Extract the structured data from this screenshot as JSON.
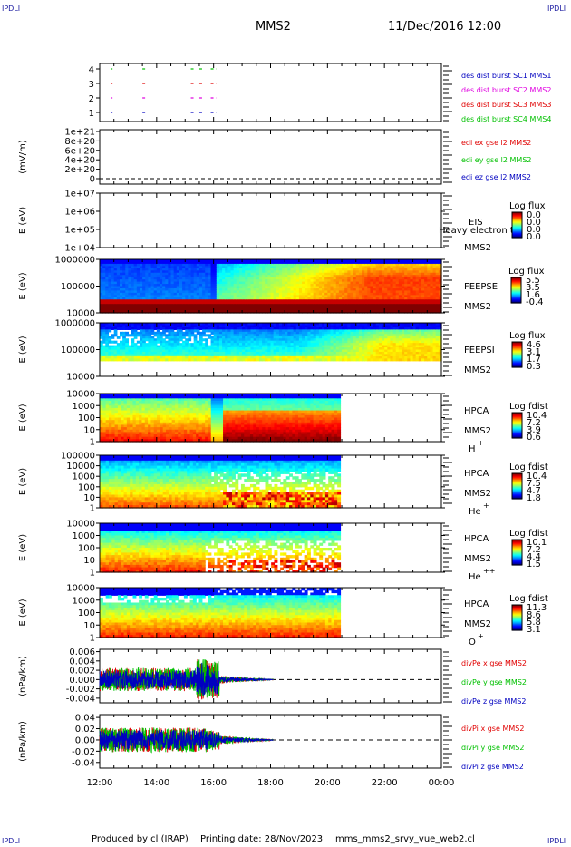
{
  "corner_logo": "IPDLI",
  "header": {
    "title": "MMS2",
    "datetime": "11/Dec/2016 12:00"
  },
  "footer": {
    "producer": "Produced by cl (IRAP)",
    "printing": "Printing date: 28/Nov/2023",
    "file": "mms_mms2_srvy_vue_web2.cl"
  },
  "time_axis": {
    "ticks": [
      "12:00",
      "14:00",
      "16:00",
      "18:00",
      "20:00",
      "22:00",
      "00:00"
    ],
    "start_hour": 12,
    "end_hour": 24
  },
  "colors": {
    "red": "#e00000",
    "green": "#00c000",
    "blue": "#0000c0",
    "magenta": "#e000e0"
  },
  "chart_data": [
    {
      "type": "line",
      "id": "burst",
      "ylabels": [
        "4",
        "3",
        "2",
        "1"
      ],
      "legend": [
        {
          "text": "des dist burst SC1 MMS1",
          "color": "#0000c0"
        },
        {
          "text": "des dist burst SC2 MMS2",
          "color": "#e000e0"
        },
        {
          "text": "des dist burst SC3 MMS3",
          "color": "#e00000"
        },
        {
          "text": "des dist burst SC4 MMS4",
          "color": "#00c000"
        }
      ],
      "intervals_hours": [
        [
          12.4,
          12.45
        ],
        [
          13.5,
          13.6
        ],
        [
          15.2,
          15.3
        ],
        [
          15.5,
          15.6
        ],
        [
          15.9,
          16.1
        ]
      ]
    },
    {
      "type": "line",
      "id": "edi",
      "ylabel": "(mV/m)",
      "ticks": [
        "1e+21",
        "8e+20",
        "6e+20",
        "4e+20",
        "2e+20",
        "0"
      ],
      "legend": [
        {
          "text": "edi ex gse l2 MMS2",
          "color": "#e00000"
        },
        {
          "text": "edi ey gse l2 MMS2",
          "color": "#00c000"
        },
        {
          "text": "edi ez gse l2 MMS2",
          "color": "#0000c0"
        }
      ]
    },
    {
      "type": "heatmap",
      "id": "eis",
      "ylabel": "E (eV)",
      "ticks": [
        "1e+07",
        "1e+06",
        "1e+05",
        "1e+04"
      ],
      "names": [
        "EIS",
        "MMS2"
      ],
      "overlay": "Heavy electron to",
      "cbar_title": "Log flux",
      "cbar_ticks": [
        "0.0",
        "0.0",
        "0.0",
        "0.0"
      ]
    },
    {
      "type": "heatmap",
      "id": "feepse",
      "ylabel": "E (eV)",
      "ticks": [
        "1000000",
        "100000",
        "10000"
      ],
      "names": [
        "FEEPSE",
        "MMS2"
      ],
      "cbar_title": "Log flux",
      "cbar_ticks": [
        "5.5",
        "3.5",
        "1.6",
        "-0.4"
      ]
    },
    {
      "type": "heatmap",
      "id": "feepsi",
      "ylabel": "E (eV)",
      "ticks": [
        "1000000",
        "100000",
        "10000"
      ],
      "names": [
        "FEEPSI",
        "MMS2"
      ],
      "cbar_title": "Log flux",
      "cbar_ticks": [
        "4.6",
        "3.1",
        "1.7",
        "0.3"
      ]
    },
    {
      "type": "heatmap",
      "id": "hpca-h",
      "ylabel": "E (eV)",
      "ticks": [
        "10000",
        "1000",
        "100",
        "10",
        "1"
      ],
      "names": [
        "HPCA",
        "MMS2"
      ],
      "species": "H",
      "charge": "+",
      "cbar_title": "Log fdist",
      "cbar_ticks": [
        "10.4",
        "7.2",
        "3.9",
        "0.6"
      ]
    },
    {
      "type": "heatmap",
      "id": "hpca-he",
      "ylabel": "E (eV)",
      "ticks": [
        "100000",
        "10000",
        "1000",
        "100",
        "10",
        "1"
      ],
      "names": [
        "HPCA",
        "MMS2"
      ],
      "species": "He",
      "charge": "+",
      "cbar_title": "Log fdist",
      "cbar_ticks": [
        "10.4",
        "7.5",
        "4.7",
        "1.8"
      ]
    },
    {
      "type": "heatmap",
      "id": "hpca-he2",
      "ylabel": "E (eV)",
      "ticks": [
        "10000",
        "1000",
        "100",
        "10",
        "1"
      ],
      "names": [
        "HPCA",
        "MMS2"
      ],
      "species": "He",
      "charge": "++",
      "cbar_title": "Log fdist",
      "cbar_ticks": [
        "10.1",
        "7.2",
        "4.4",
        "1.5"
      ]
    },
    {
      "type": "heatmap",
      "id": "hpca-o",
      "ylabel": "E (eV)",
      "ticks": [
        "10000",
        "1000",
        "100",
        "10",
        "1"
      ],
      "names": [
        "HPCA",
        "MMS2"
      ],
      "species": "O",
      "charge": "+",
      "cbar_title": "Log fdist",
      "cbar_ticks": [
        "11.3",
        "8.6",
        "5.8",
        "3.1"
      ]
    },
    {
      "type": "line",
      "id": "divpe",
      "ylabel": "(nPa/km)",
      "ticks": [
        "0.006",
        "0.004",
        "0.002",
        "0.000",
        "-0.002",
        "-0.004"
      ],
      "ylim": [
        -0.005,
        0.0065
      ],
      "legend": [
        {
          "text": "divPe x gse MMS2",
          "color": "#e00000"
        },
        {
          "text": "divPe y gse MMS2",
          "color": "#00c000"
        },
        {
          "text": "divPe z gse MMS2",
          "color": "#0000c0"
        }
      ]
    },
    {
      "type": "line",
      "id": "divpi",
      "ylabel": "(nPa/km)",
      "ticks": [
        "0.04",
        "0.02",
        "0.00",
        "-0.02",
        "-0.04"
      ],
      "ylim": [
        -0.05,
        0.045
      ],
      "legend": [
        {
          "text": "divPi x gse MMS2",
          "color": "#e00000"
        },
        {
          "text": "divPi y gse MMS2",
          "color": "#00c000"
        },
        {
          "text": "divPi z gse MMS2",
          "color": "#0000c0"
        }
      ]
    }
  ]
}
